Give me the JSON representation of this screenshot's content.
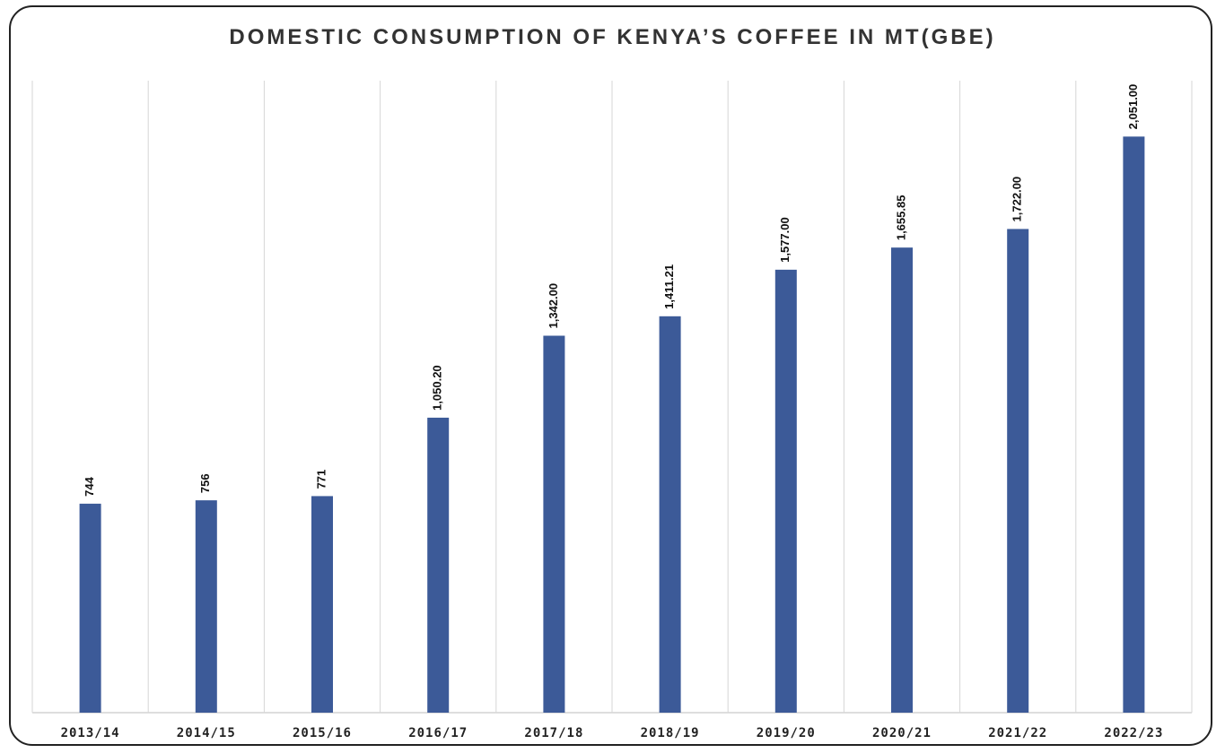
{
  "chart_data": {
    "type": "bar",
    "title": "DOMESTIC CONSUMPTION OF KENYA’S COFFEE IN MT(GBE)",
    "categories": [
      "2013/14",
      "2014/15",
      "2015/16",
      "2016/17",
      "2017/18",
      "2018/19",
      "2019/20",
      "2020/21",
      "2021/22",
      "2022/23"
    ],
    "values": [
      744,
      756,
      771,
      1050.2,
      1342,
      1411.21,
      1577,
      1655.85,
      1722,
      2051
    ],
    "value_labels": [
      "744",
      "756",
      "771",
      "1,050.20",
      "1,342.00",
      "1,411.21",
      "1,577.00",
      "1,655.85",
      "1,722.00",
      "2,051.00"
    ],
    "ylim": [
      0,
      2250
    ],
    "grid": "vertical",
    "bar_color": "#3c5a98"
  }
}
